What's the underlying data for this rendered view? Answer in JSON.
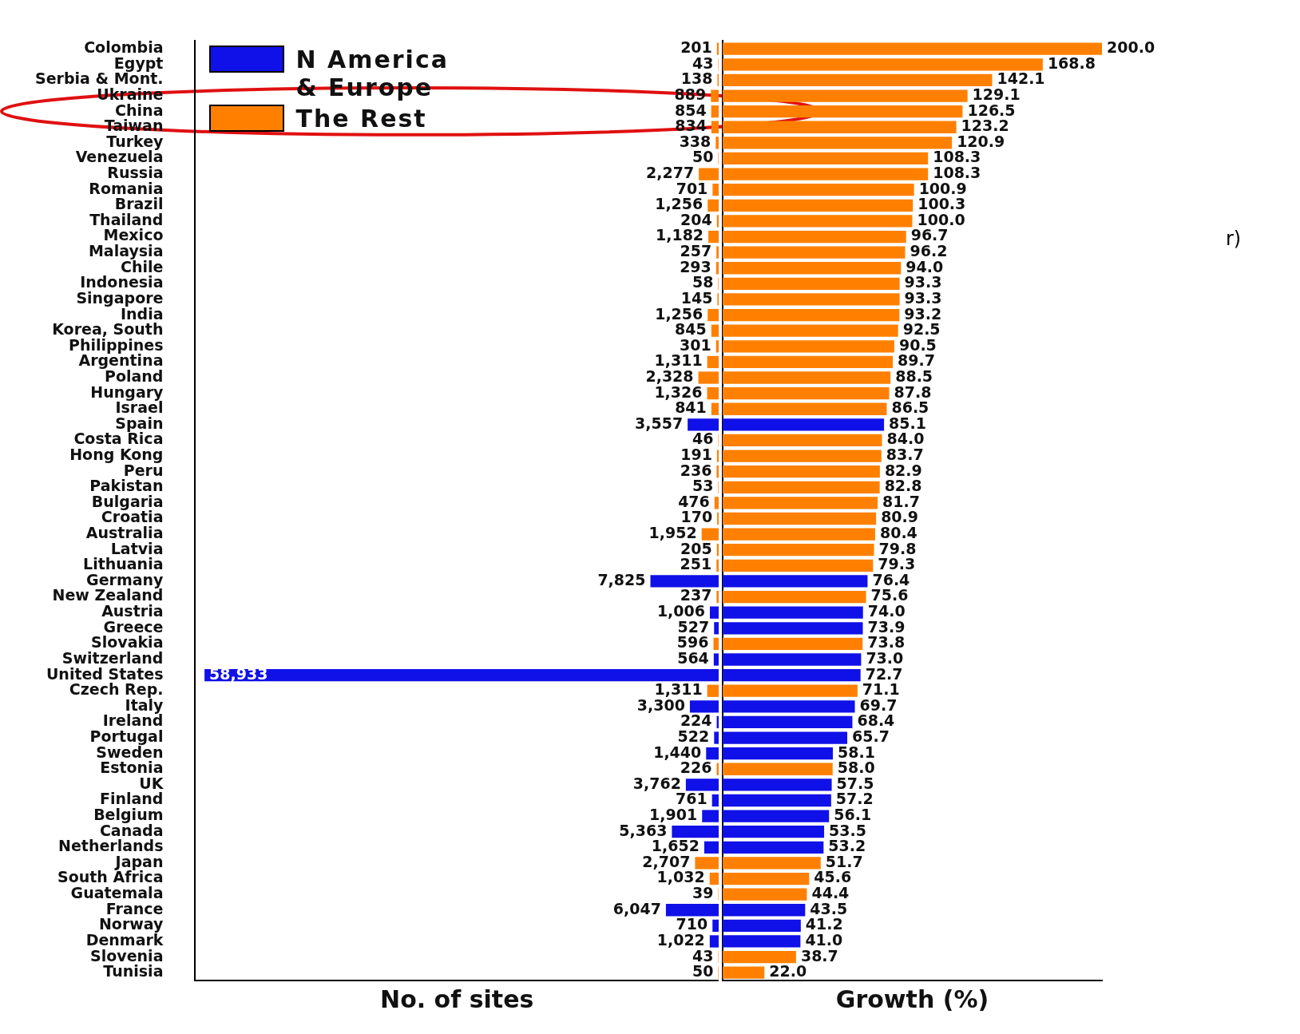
{
  "chart_data": [
    {
      "type": "bar",
      "orientation": "horizontal",
      "stacked": true,
      "xlabel": "No. of sites",
      "legend": "top left",
      "tick_labels": "y",
      "xlim": [
        60000,
        0
      ],
      "categories": [
        "Colombia",
        "Egypt",
        "Serbia & Mont.",
        "Ukraine",
        "China",
        "Taiwan",
        "Turkey",
        "Venezuela",
        "Russia",
        "Romania",
        "Brazil",
        "Thailand",
        "Mexico",
        "Malaysia",
        "Chile",
        "Indonesia",
        "Singapore",
        "India",
        "Korea, South",
        "Philippines",
        "Argentina",
        "Poland",
        "Hungary",
        "Israel",
        "Spain",
        "Costa Rica",
        "Hong Kong",
        "Peru",
        "Pakistan",
        "Bulgaria",
        "Croatia",
        "Australia",
        "Latvia",
        "Lithuania",
        "Germany",
        "New Zealand",
        "Austria",
        "Greece",
        "Slovakia",
        "Switzerland",
        "United States",
        "Czech Rep.",
        "Italy",
        "Ireland",
        "Portugal",
        "Sweden",
        "Estonia",
        "UK",
        "Finland",
        "Belgium",
        "Canada",
        "Netherlands",
        "Japan",
        "South Africa",
        "Guatemala",
        "France",
        "Norway",
        "Denmark",
        "Slovenia",
        "Tunisia"
      ],
      "series": [
        {
          "name": "N America & Europe",
          "color": "#1010e8",
          "values": [
            null,
            null,
            null,
            null,
            null,
            null,
            null,
            null,
            null,
            null,
            null,
            null,
            null,
            null,
            null,
            null,
            null,
            null,
            null,
            null,
            null,
            null,
            null,
            null,
            3557,
            null,
            null,
            null,
            null,
            null,
            null,
            null,
            null,
            null,
            7825,
            null,
            1006,
            527,
            null,
            564,
            58933,
            null,
            3300,
            224,
            522,
            1440,
            null,
            3762,
            761,
            1901,
            5363,
            1652,
            null,
            null,
            null,
            6047,
            710,
            1022,
            null,
            null
          ],
          "value_labels": [
            null,
            null,
            null,
            null,
            null,
            null,
            null,
            null,
            null,
            null,
            null,
            null,
            null,
            null,
            null,
            null,
            null,
            null,
            null,
            null,
            null,
            null,
            null,
            null,
            "3,557",
            null,
            null,
            null,
            null,
            null,
            null,
            null,
            null,
            null,
            "7,825",
            null,
            "1,006",
            "527",
            null,
            "564",
            "58,933",
            null,
            "3,300",
            "224",
            "522",
            "1,440",
            null,
            "3,762",
            "761",
            "1,901",
            "5,363",
            "1,652",
            null,
            null,
            null,
            "6,047",
            "710",
            "1,022",
            null,
            null
          ]
        },
        {
          "name": "The Rest",
          "color": "#ff8000",
          "values": [
            201,
            43,
            138,
            889,
            854,
            834,
            338,
            50,
            2277,
            701,
            1256,
            204,
            1182,
            257,
            293,
            58,
            145,
            1256,
            845,
            301,
            1311,
            2328,
            1326,
            841,
            null,
            46,
            191,
            236,
            53,
            476,
            170,
            1952,
            205,
            251,
            null,
            237,
            null,
            null,
            596,
            null,
            null,
            1311,
            null,
            null,
            null,
            null,
            226,
            null,
            null,
            null,
            null,
            null,
            2707,
            1032,
            39,
            null,
            null,
            null,
            43,
            50
          ],
          "value_labels": [
            "201",
            "43",
            "138",
            "889",
            "854",
            "834",
            "338",
            "50",
            "2,277",
            "701",
            "1,256",
            "204",
            "1,182",
            "257",
            "293",
            "58",
            "145",
            "1,256",
            "845",
            "301",
            "1,311",
            "2,328",
            "1,326",
            "841",
            null,
            "46",
            "191",
            "236",
            "53",
            "476",
            "170",
            "1,952",
            "205",
            "251",
            null,
            "237",
            null,
            null,
            "596",
            null,
            null,
            "1,311",
            null,
            null,
            null,
            null,
            "226",
            null,
            null,
            null,
            null,
            null,
            "2,707",
            "1,032",
            "39",
            null,
            null,
            null,
            "43",
            "50"
          ]
        }
      ]
    },
    {
      "type": "bar",
      "orientation": "horizontal",
      "stacked": true,
      "xlabel": "Growth (%)",
      "tick_labels": false,
      "annotations": [
        "r)"
      ],
      "categories": [
        null,
        null,
        null,
        null,
        null,
        null,
        null,
        null,
        null,
        null,
        null,
        null,
        null,
        null,
        null,
        null,
        null,
        null,
        null,
        null,
        null,
        null,
        null,
        null,
        null,
        null,
        null,
        null,
        null,
        null,
        null,
        null,
        null,
        null,
        null,
        null,
        null,
        null,
        null,
        null,
        null,
        null,
        null,
        null,
        null,
        null,
        null,
        null,
        null,
        null,
        null,
        null,
        null,
        null,
        null,
        null,
        null,
        null,
        null,
        null
      ],
      "series": [
        {
          "color": "#1010e8",
          "values": [
            null,
            null,
            null,
            null,
            null,
            null,
            null,
            null,
            null,
            null,
            null,
            null,
            null,
            null,
            null,
            null,
            null,
            null,
            null,
            null,
            null,
            null,
            null,
            null,
            85.1,
            null,
            null,
            null,
            null,
            null,
            null,
            null,
            null,
            null,
            76.4,
            null,
            74.0,
            73.9,
            null,
            73.0,
            72.7,
            null,
            69.7,
            68.4,
            65.7,
            58.1,
            null,
            57.5,
            57.2,
            56.1,
            53.5,
            53.2,
            null,
            null,
            null,
            43.5,
            41.2,
            41.0,
            null,
            null
          ],
          "value_labels": [
            null,
            null,
            null,
            null,
            null,
            null,
            null,
            null,
            null,
            null,
            null,
            null,
            null,
            null,
            null,
            null,
            null,
            null,
            null,
            null,
            null,
            null,
            null,
            null,
            "85.1",
            null,
            null,
            null,
            null,
            null,
            null,
            null,
            null,
            null,
            "76.4",
            null,
            "74.0",
            "73.9",
            null,
            "73.0",
            "72.7",
            null,
            "69.7",
            "68.4",
            "65.7",
            "58.1",
            null,
            "57.5",
            "57.2",
            "56.1",
            "53.5",
            "53.2",
            null,
            null,
            null,
            "43.5",
            "41.2",
            "41.0",
            null,
            null
          ]
        },
        {
          "color": "#ff8000",
          "values": [
            200.0,
            168.8,
            142.1,
            129.1,
            126.5,
            123.2,
            120.9,
            108.3,
            108.3,
            100.9,
            100.3,
            100.0,
            96.7,
            96.2,
            94.0,
            93.3,
            93.3,
            93.2,
            92.5,
            90.5,
            89.7,
            88.5,
            87.8,
            86.5,
            null,
            84.0,
            83.7,
            82.9,
            82.8,
            81.7,
            80.9,
            80.4,
            79.8,
            79.3,
            null,
            75.6,
            null,
            null,
            73.8,
            null,
            null,
            71.1,
            null,
            null,
            null,
            null,
            58.0,
            null,
            null,
            null,
            null,
            null,
            51.7,
            45.6,
            44.4,
            null,
            null,
            null,
            38.7,
            22.0
          ],
          "value_labels": [
            "200.0",
            "168.8",
            "142.1",
            "129.1",
            "126.5",
            "123.2",
            "120.9",
            "108.3",
            "108.3",
            "100.9",
            "100.3",
            "100.0",
            "96.7",
            "96.2",
            "94.0",
            "93.3",
            "93.3",
            "93.2",
            "92.5",
            "90.5",
            "89.7",
            "88.5",
            "87.8",
            "86.5",
            null,
            "84.0",
            "83.7",
            "82.9",
            "82.8",
            "81.7",
            "80.9",
            "80.4",
            "79.8",
            "79.3",
            null,
            "75.6",
            null,
            null,
            "73.8",
            null,
            null,
            "71.1",
            null,
            null,
            null,
            null,
            "58.0",
            null,
            null,
            null,
            null,
            null,
            "51.7",
            "45.6",
            "44.4",
            null,
            null,
            null,
            "38.7",
            "22.0"
          ]
        }
      ]
    }
  ]
}
